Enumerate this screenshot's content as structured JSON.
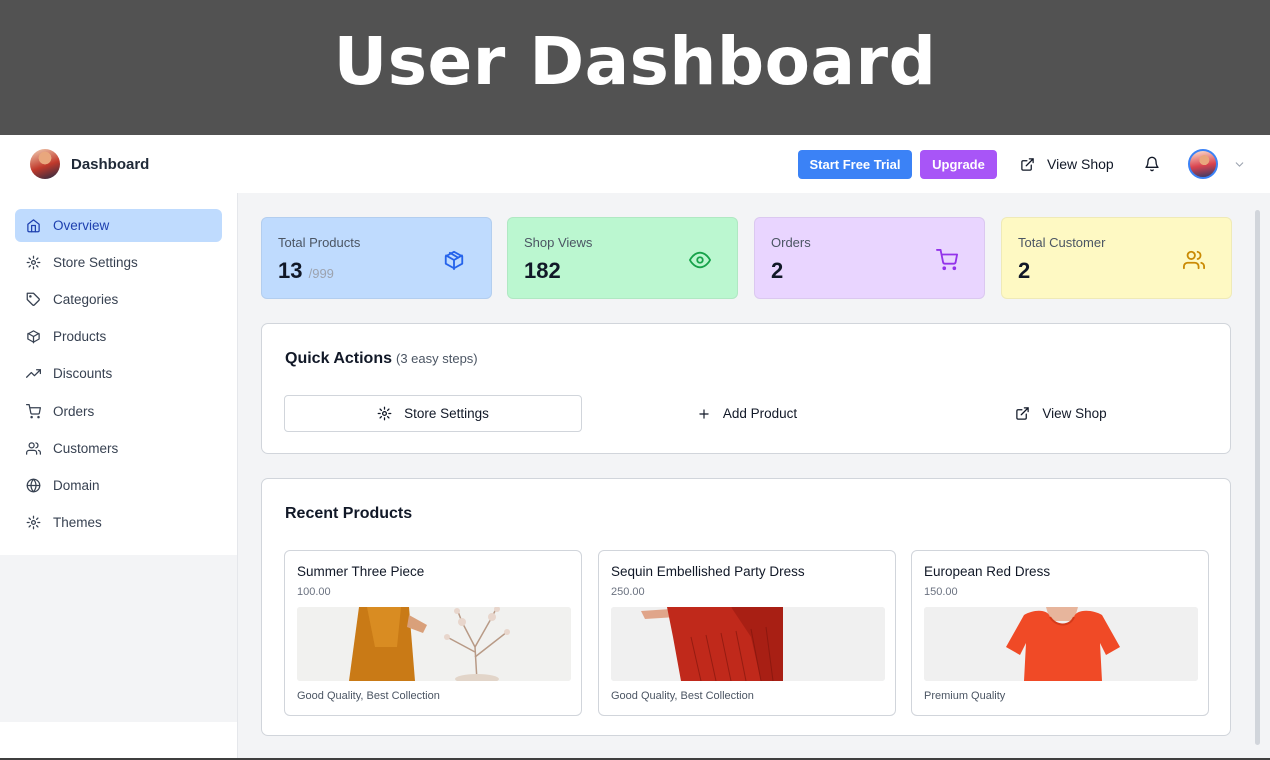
{
  "banner": {
    "title": "User Dashboard"
  },
  "topbar": {
    "brand_title": "Dashboard",
    "trial_label": "Start Free Trial",
    "upgrade_label": "Upgrade",
    "view_shop_label": "View Shop"
  },
  "sidebar": {
    "items": [
      {
        "label": "Overview",
        "icon": "home-icon",
        "active": true
      },
      {
        "label": "Store Settings",
        "icon": "gear-icon"
      },
      {
        "label": "Categories",
        "icon": "tag-icon"
      },
      {
        "label": "Products",
        "icon": "box-icon"
      },
      {
        "label": "Discounts",
        "icon": "trending-up-icon"
      },
      {
        "label": "Orders",
        "icon": "cart-icon"
      },
      {
        "label": "Customers",
        "icon": "users-icon"
      },
      {
        "label": "Domain",
        "icon": "globe-icon"
      },
      {
        "label": "Themes",
        "icon": "gear-icon"
      }
    ]
  },
  "stats": [
    {
      "label": "Total Products",
      "value": "13",
      "max": "/999",
      "color": "#bfdbfe",
      "icon": "box-icon",
      "icon_color": "#2563eb"
    },
    {
      "label": "Shop Views",
      "value": "182",
      "color": "#bbf7d0",
      "icon": "eye-icon",
      "icon_color": "#16a34a"
    },
    {
      "label": "Orders",
      "value": "2",
      "color": "#e9d5ff",
      "icon": "cart-icon",
      "icon_color": "#9333ea"
    },
    {
      "label": "Total Customer",
      "value": "2",
      "color": "#fef9c3",
      "icon": "users-icon",
      "icon_color": "#ca8a04"
    }
  ],
  "quick_actions": {
    "title": "Quick Actions",
    "subtitle": "(3 easy steps)",
    "actions": [
      {
        "label": "Store Settings",
        "icon": "gear-icon"
      },
      {
        "label": "Add Product",
        "icon": "plus-icon"
      },
      {
        "label": "View Shop",
        "icon": "external-link-icon"
      }
    ]
  },
  "recent_products": {
    "title": "Recent Products",
    "items": [
      {
        "name": "Summer Three Piece",
        "price": "100.00",
        "desc": "Good Quality, Best Collection",
        "image": "orange-dress-photo"
      },
      {
        "name": "Sequin Embellished Party Dress",
        "price": "250.00",
        "desc": "Good Quality, Best Collection",
        "image": "red-party-dress-photo"
      },
      {
        "name": "European Red Dress",
        "price": "150.00",
        "desc": "Premium Quality",
        "image": "red-tshirt-dress-photo"
      }
    ]
  },
  "colors": {
    "primary": "#3b82f6",
    "upgrade": "#a855f7",
    "active_nav": "#bfdbfe"
  }
}
